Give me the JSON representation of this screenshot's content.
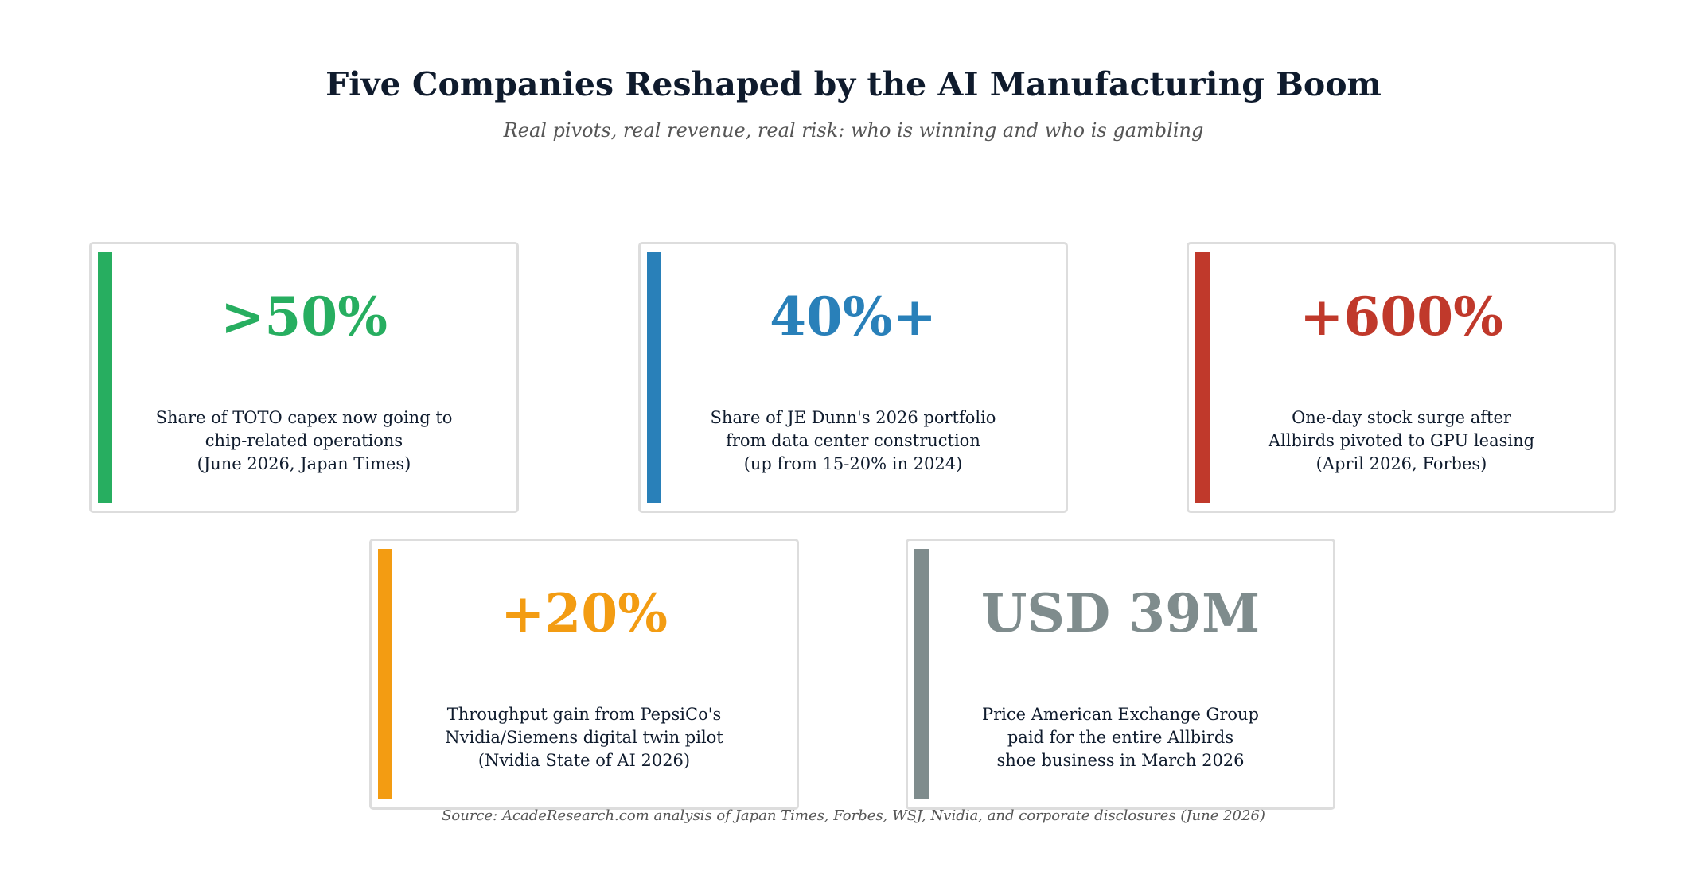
{
  "header": {
    "title": "Five Companies Reshaped by the AI Manufacturing Boom",
    "subtitle": "Real pivots, real revenue, real risk: who is winning and who is gambling"
  },
  "cards": [
    {
      "stat": ">50%",
      "color": "#27ae60",
      "description": [
        "Share of TOTO capex now going to",
        "chip-related operations",
        "(June 2026, Japan Times)"
      ]
    },
    {
      "stat": "40%+",
      "color": "#2980b9",
      "description": [
        "Share of JE Dunn's 2026 portfolio",
        "from data center construction",
        "(up from 15-20% in 2024)"
      ]
    },
    {
      "stat": "+600%",
      "color": "#c0392b",
      "description": [
        "One-day stock surge after",
        "Allbirds pivoted to GPU leasing",
        "(April 2026, Forbes)"
      ]
    },
    {
      "stat": "+20%",
      "color": "#f39c12",
      "description": [
        "Throughput gain from PepsiCo's",
        "Nvidia/Siemens digital twin pilot",
        "(Nvidia State of AI 2026)"
      ]
    },
    {
      "stat": "USD 39M",
      "color": "#7f8c8d",
      "description": [
        "Price American Exchange Group",
        "paid for the entire Allbirds",
        "shoe business in March 2026"
      ]
    }
  ],
  "footer": {
    "source": "Source: AcadeResearch.com analysis of Japan Times, Forbes, WSJ, Nvidia, and corporate disclosures (June 2026)"
  }
}
